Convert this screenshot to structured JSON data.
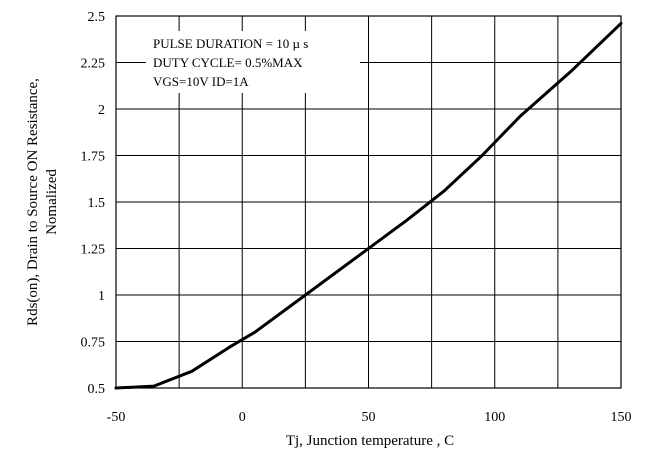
{
  "chart_data": {
    "type": "line",
    "xlabel": "Tj, Junction temperature , C",
    "ylabel": [
      "Rds(on), Drain to Source ON Resistance,",
      "Nomalized"
    ],
    "xlim": [
      -50,
      150
    ],
    "ylim": [
      0.5,
      2.5
    ],
    "x_ticks": [
      "-50",
      "0",
      "50",
      "100",
      "150"
    ],
    "y_ticks": [
      "0.5",
      "0.75",
      "1",
      "1.25",
      "1.5",
      "1.75",
      "2",
      "2.25",
      "2.5"
    ],
    "grid": true,
    "annotations": [
      "PULSE    DURATION = 10 µ s",
      "DUTY    CYCLE= 0.5%MAX",
      "VGS=10V    ID=1A"
    ],
    "series": [
      {
        "x": [
          -50,
          -35,
          -20,
          -5,
          5,
          25,
          50,
          65,
          80,
          95,
          110,
          130,
          150
        ],
        "y": [
          0.5,
          0.51,
          0.59,
          0.72,
          0.8,
          1.0,
          1.25,
          1.4,
          1.56,
          1.75,
          1.96,
          2.2,
          2.46
        ]
      }
    ]
  }
}
